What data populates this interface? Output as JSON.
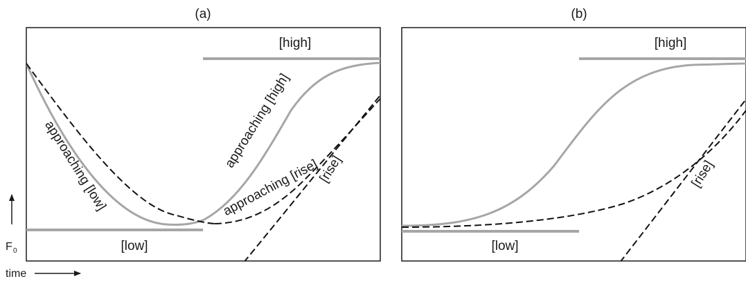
{
  "panels": [
    {
      "title": "(a)",
      "targets": {
        "low": "[low]",
        "high": "[high]",
        "rise": "[rise]"
      },
      "curves": {
        "approaching_low": "approaching [low]",
        "approaching_high": "approaching [high]",
        "approaching_rise": "approaching [rise]"
      }
    },
    {
      "title": "(b)",
      "targets": {
        "low": "[low]",
        "high": "[high]",
        "rise": "[rise]"
      }
    }
  ],
  "axes": {
    "y_label": "F",
    "y_label_subscript": "0",
    "x_label": "time"
  },
  "colors": {
    "target_line": "#a6a6a6",
    "dashed_contour": "#111111",
    "frame": "#1a1a1a",
    "text": "#1a1a1a"
  }
}
